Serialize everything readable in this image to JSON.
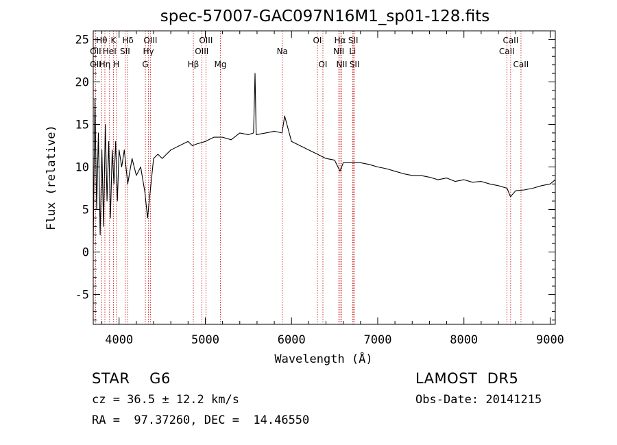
{
  "chart_data": {
    "type": "line",
    "title": "spec-57007-GAC097N16M1_sp01-128.fits",
    "xlabel": "Wavelength (Å)",
    "ylabel": "Flux (relative)",
    "xlim": [
      3700,
      9060
    ],
    "ylim": [
      -8.5,
      26
    ],
    "xticks": [
      4000,
      5000,
      6000,
      7000,
      8000,
      9000
    ],
    "yticks": [
      -5,
      0,
      5,
      10,
      15,
      20,
      25
    ],
    "grid": false,
    "legend": "none",
    "series": [
      {
        "x": [
          3700,
          3720,
          3740,
          3760,
          3780,
          3800,
          3820,
          3840,
          3860,
          3880,
          3900,
          3920,
          3940,
          3960,
          3980,
          4000,
          4030,
          4060,
          4100,
          4150,
          4200,
          4250,
          4300,
          4330,
          4350,
          4380,
          4400,
          4450,
          4500,
          4600,
          4700,
          4800,
          4850,
          4900,
          5000,
          5100,
          5200,
          5300,
          5400,
          5500,
          5560,
          5577,
          5590,
          5700,
          5800,
          5890,
          5920,
          6000,
          6100,
          6200,
          6300,
          6400,
          6500,
          6563,
          6600,
          6700,
          6800,
          6900,
          7000,
          7100,
          7200,
          7300,
          7400,
          7500,
          7600,
          7700,
          7800,
          7900,
          8000,
          8100,
          8200,
          8300,
          8400,
          8500,
          8540,
          8600,
          8700,
          8800,
          8900,
          9000,
          9060
        ],
        "values": [
          1,
          18,
          5,
          14,
          2,
          12,
          3,
          15,
          6,
          13,
          4,
          12,
          8,
          13,
          6,
          12,
          10,
          12,
          8,
          11,
          9,
          10,
          7,
          4,
          6,
          9,
          11,
          11.5,
          11,
          12,
          12.5,
          13,
          12.5,
          12.7,
          13,
          13.5,
          13.5,
          13.2,
          14,
          13.8,
          14,
          21,
          13.8,
          14,
          14.2,
          14,
          16,
          13,
          12.5,
          12,
          11.5,
          11,
          10.8,
          9.5,
          10.5,
          10.5,
          10.5,
          10.3,
          10,
          9.8,
          9.5,
          9.2,
          9,
          9,
          8.8,
          8.5,
          8.7,
          8.3,
          8.5,
          8.2,
          8.3,
          8,
          7.8,
          7.5,
          6.5,
          7.2,
          7.3,
          7.5,
          7.8,
          8,
          8.5
        ]
      }
    ],
    "spectral_lines": [
      {
        "label": "Hθ",
        "x": 3798,
        "row": 1
      },
      {
        "label": "OII",
        "x": 3727,
        "row": 2
      },
      {
        "label": "OII",
        "x": 3727,
        "row": 3
      },
      {
        "label": "K",
        "x": 3934,
        "row": 1
      },
      {
        "label": "HeI",
        "x": 3889,
        "row": 2
      },
      {
        "label": "Hη",
        "x": 3835,
        "row": 3
      },
      {
        "label": "Hδ",
        "x": 4102,
        "row": 1
      },
      {
        "label": "SII",
        "x": 4069,
        "row": 2
      },
      {
        "label": "H",
        "x": 3969,
        "row": 3
      },
      {
        "label": "OIII",
        "x": 4363,
        "row": 1
      },
      {
        "label": "Hγ",
        "x": 4341,
        "row": 2
      },
      {
        "label": "G",
        "x": 4305,
        "row": 3
      },
      {
        "label": "Hβ",
        "x": 4861,
        "row": 3
      },
      {
        "label": "OIII",
        "x": 5007,
        "row": 1
      },
      {
        "label": "OIII",
        "x": 4959,
        "row": 2
      },
      {
        "label": "Mg",
        "x": 5175,
        "row": 3
      },
      {
        "label": "Na",
        "x": 5893,
        "row": 2
      },
      {
        "label": "OI",
        "x": 6300,
        "row": 1
      },
      {
        "label": "OI",
        "x": 6364,
        "row": 3
      },
      {
        "label": "Hα",
        "x": 6563,
        "row": 1
      },
      {
        "label": "NII",
        "x": 6548,
        "row": 2
      },
      {
        "label": "NII",
        "x": 6583,
        "row": 3
      },
      {
        "label": "SII",
        "x": 6716,
        "row": 1
      },
      {
        "label": "Li",
        "x": 6708,
        "row": 2
      },
      {
        "label": "SII",
        "x": 6731,
        "row": 3
      },
      {
        "label": "CaII",
        "x": 8542,
        "row": 1
      },
      {
        "label": "CaII",
        "x": 8498,
        "row": 2
      },
      {
        "label": "CaII",
        "x": 8662,
        "row": 3
      }
    ]
  },
  "info": {
    "object": "STAR    G6",
    "survey": "LAMOST  DR5",
    "cz": "cz = 36.5 ± 12.2 km/s",
    "obs_date": "Obs-Date: 20141215",
    "coords": "RA =  97.37260, DEC =  14.46550"
  }
}
